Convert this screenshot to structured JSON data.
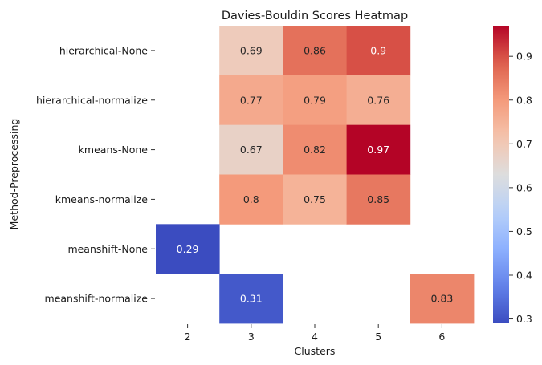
{
  "chart_data": {
    "type": "heatmap",
    "title": "Davies-Bouldin Scores Heatmap",
    "xlabel": "Clusters",
    "ylabel": "Method-Preprocessing",
    "x_categories": [
      "2",
      "3",
      "4",
      "5",
      "6"
    ],
    "y_categories": [
      "hierarchical-None",
      "hierarchical-normalize",
      "kmeans-None",
      "kmeans-normalize",
      "meanshift-None",
      "meanshift-normalize"
    ],
    "values": [
      [
        null,
        0.69,
        0.86,
        0.9,
        null
      ],
      [
        null,
        0.77,
        0.79,
        0.76,
        null
      ],
      [
        null,
        0.67,
        0.82,
        0.97,
        null
      ],
      [
        null,
        0.8,
        0.75,
        0.85,
        null
      ],
      [
        0.29,
        null,
        null,
        null,
        null
      ],
      [
        null,
        0.31,
        null,
        null,
        0.83
      ]
    ],
    "annotations": [
      [
        "",
        "0.69",
        "0.86",
        "0.9",
        ""
      ],
      [
        "",
        "0.77",
        "0.79",
        "0.76",
        ""
      ],
      [
        "",
        "0.67",
        "0.82",
        "0.97",
        ""
      ],
      [
        "",
        "0.8",
        "0.75",
        "0.85",
        ""
      ],
      [
        "0.29",
        "",
        "",
        "",
        ""
      ],
      [
        "",
        "0.31",
        "",
        "",
        "0.83"
      ]
    ],
    "colormap": "coolwarm",
    "colorbar": {
      "range": [
        0.29,
        0.97
      ],
      "ticks": [
        0.3,
        0.4,
        0.5,
        0.6,
        0.7,
        0.8,
        0.9
      ],
      "tick_labels": [
        "0.3",
        "0.4",
        "0.5",
        "0.6",
        "0.7",
        "0.8",
        "0.9"
      ]
    },
    "grid": false,
    "legend": "colorbar-right"
  }
}
